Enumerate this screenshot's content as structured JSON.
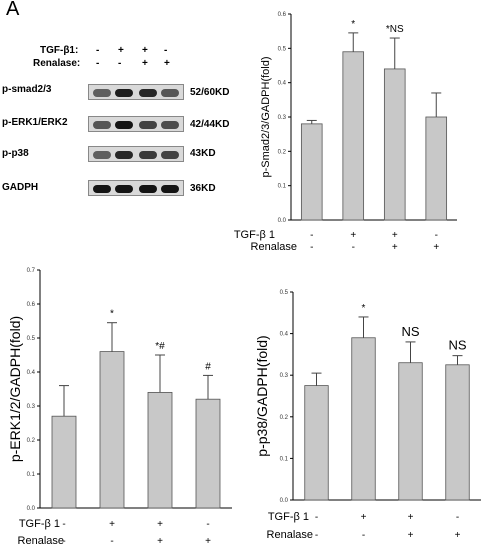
{
  "panel_label": "A",
  "western_blot": {
    "treatment_rows": [
      {
        "label": "TGF-β1:",
        "signs": [
          "-",
          "+",
          "+",
          "-"
        ]
      },
      {
        "label": "Renalase:",
        "signs": [
          "-",
          "-",
          "+",
          "+"
        ]
      }
    ],
    "bands": [
      {
        "name": "p-smad2/3",
        "size": "52/60KD",
        "intensity": [
          0.55,
          0.9,
          0.85,
          0.6
        ]
      },
      {
        "name": "p-ERK1/ERK2",
        "size": "42/44KD",
        "intensity": [
          0.6,
          0.95,
          0.7,
          0.65
        ]
      },
      {
        "name": "p-p38",
        "size": "43KD",
        "intensity": [
          0.55,
          0.85,
          0.75,
          0.7
        ]
      },
      {
        "name": "GADPH",
        "size": "36KD",
        "intensity": [
          0.95,
          0.95,
          0.95,
          0.95
        ]
      }
    ]
  },
  "chart_data": [
    {
      "type": "bar",
      "id": "smad",
      "ylabel": "p-Smad2/3/GADPH(fold)",
      "ylim": [
        0,
        0.6
      ],
      "yticks": [
        "0.0",
        "0.1",
        "0.2",
        "0.3",
        "0.4",
        "0.5",
        "0.6"
      ],
      "values": [
        0.28,
        0.49,
        0.44,
        0.3
      ],
      "errors": [
        0.01,
        0.055,
        0.09,
        0.07
      ],
      "annotations": [
        "",
        "*",
        "*NS",
        ""
      ],
      "factors": [
        {
          "label": "TGF-β 1",
          "signs": [
            "-",
            "+",
            "+",
            "-"
          ]
        },
        {
          "label": "Renalase",
          "signs": [
            "-",
            "-",
            "+",
            "+"
          ]
        }
      ]
    },
    {
      "type": "bar",
      "id": "erk",
      "ylabel": "p-ERK1/2/GADPH(fold)",
      "ylim": [
        0,
        0.7
      ],
      "yticks": [
        "0.0",
        "0.1",
        "0.2",
        "0.3",
        "0.4",
        "0.5",
        "0.6",
        "0.7"
      ],
      "values": [
        0.27,
        0.46,
        0.34,
        0.32
      ],
      "errors": [
        0.09,
        0.085,
        0.11,
        0.07
      ],
      "annotations": [
        "",
        "*",
        "*#",
        "#"
      ],
      "factors": [
        {
          "label": "TGF-β 1",
          "signs": [
            "-",
            "+",
            "+",
            "-"
          ]
        },
        {
          "label": "Renalase",
          "signs": [
            "-",
            "-",
            "+",
            "+"
          ]
        }
      ]
    },
    {
      "type": "bar",
      "id": "p38",
      "ylabel": "p-p38/GADPH(fold)",
      "ylim": [
        0,
        0.5
      ],
      "yticks": [
        "0.0",
        "0.1",
        "0.2",
        "0.3",
        "0.4",
        "0.5"
      ],
      "values": [
        0.275,
        0.39,
        0.33,
        0.325
      ],
      "errors": [
        0.03,
        0.05,
        0.05,
        0.022
      ],
      "annotations": [
        "",
        "*",
        "NS",
        "NS"
      ],
      "factors": [
        {
          "label": "TGF-β 1",
          "signs": [
            "-",
            "+",
            "+",
            "-"
          ]
        },
        {
          "label": "Renalase",
          "signs": [
            "-",
            "-",
            "+",
            "+"
          ]
        }
      ]
    }
  ],
  "colors": {
    "bar_fill": "#c8c8c8",
    "bar_stroke": "#555555",
    "axis": "#000000"
  }
}
